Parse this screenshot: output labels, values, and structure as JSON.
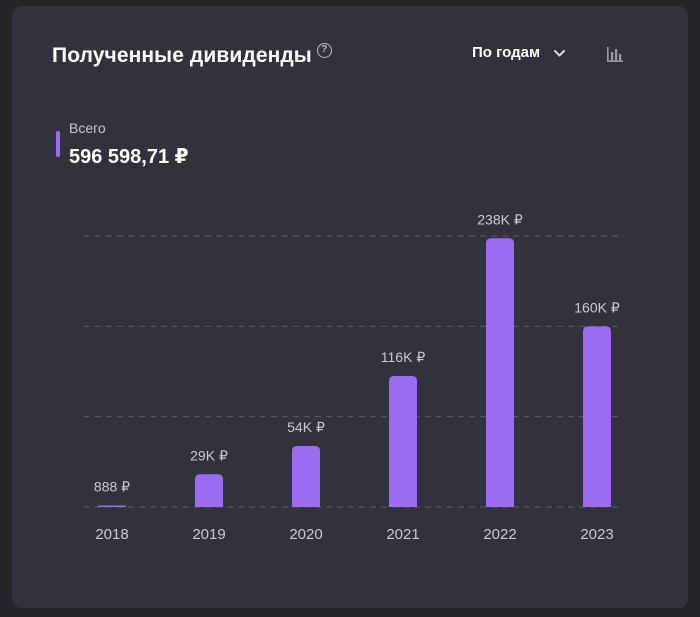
{
  "header": {
    "title": "Полученные дивиденды",
    "help_icon": "question-circle-icon",
    "period_select": {
      "label": "По годам",
      "icon": "chevron-down-icon"
    },
    "chart_type_icon": "bar-chart-icon"
  },
  "summary": {
    "label": "Всего",
    "value": "596 598,71 ₽",
    "marker_color": "#9b6cf2"
  },
  "colors": {
    "bar": "#9b6cf2",
    "card_background": "#32323c",
    "page_background": "#242429",
    "gridline": "#5c5c66"
  },
  "chart_data": {
    "type": "bar",
    "categories": [
      "2018",
      "2019",
      "2020",
      "2021",
      "2022",
      "2023"
    ],
    "values": [
      888,
      29000,
      54000,
      116000,
      238000,
      160000
    ],
    "data_labels": [
      "888 ₽",
      "29K ₽",
      "54K ₽",
      "116K ₽",
      "238K ₽",
      "160K ₽"
    ],
    "title": "",
    "xlabel": "",
    "ylabel": "",
    "ylim": [
      0,
      240000
    ],
    "grid": true,
    "legend": "none"
  }
}
